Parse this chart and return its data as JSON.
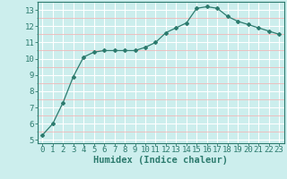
{
  "x": [
    0,
    1,
    2,
    3,
    4,
    5,
    6,
    7,
    8,
    9,
    10,
    11,
    12,
    13,
    14,
    15,
    16,
    17,
    18,
    19,
    20,
    21,
    22,
    23
  ],
  "y": [
    5.3,
    6.0,
    7.3,
    8.9,
    10.1,
    10.4,
    10.5,
    10.5,
    10.5,
    10.5,
    10.7,
    11.0,
    11.6,
    11.9,
    12.2,
    13.1,
    13.2,
    13.1,
    12.6,
    12.3,
    12.1,
    11.9,
    11.7,
    11.5
  ],
  "xlabel": "Humidex (Indice chaleur)",
  "ylim": [
    4.8,
    13.5
  ],
  "xlim": [
    -0.5,
    23.5
  ],
  "yticks": [
    5,
    6,
    7,
    8,
    9,
    10,
    11,
    12,
    13
  ],
  "xticks": [
    0,
    1,
    2,
    3,
    4,
    5,
    6,
    7,
    8,
    9,
    10,
    11,
    12,
    13,
    14,
    15,
    16,
    17,
    18,
    19,
    20,
    21,
    22,
    23
  ],
  "line_color": "#2d7b6e",
  "bg_color": "#cceeed",
  "grid_major_color": "#ffffff",
  "grid_minor_color": "#f0b8b8",
  "xlabel_fontsize": 7.5,
  "tick_fontsize": 6.5
}
